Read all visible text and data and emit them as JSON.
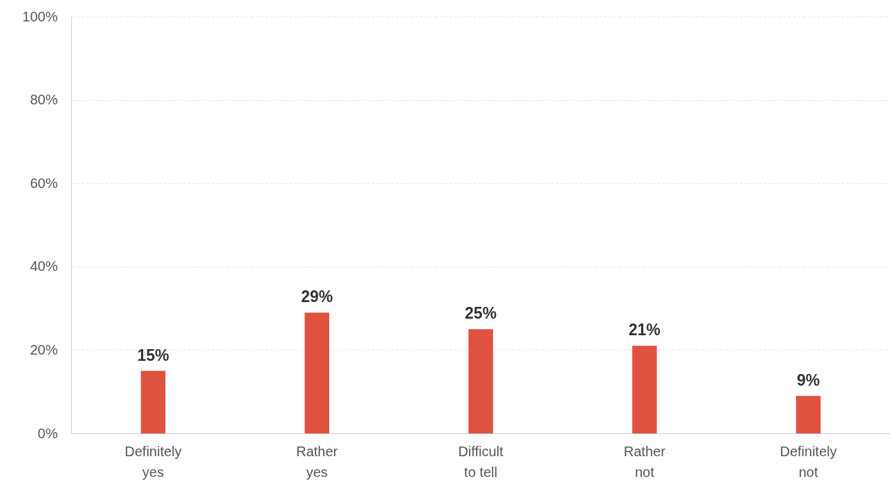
{
  "chart_data": {
    "type": "bar",
    "categories": [
      "Definitely yes",
      "Rather yes",
      "Difficult to tell",
      "Rather not",
      "Definitely not"
    ],
    "values": [
      15,
      29,
      25,
      21,
      9
    ],
    "value_labels": [
      "15%",
      "29%",
      "25%",
      "21%",
      "9%"
    ],
    "color": "#e05240",
    "ylim": [
      0,
      100
    ],
    "yticks": [
      {
        "value": 0,
        "label": "0%"
      },
      {
        "value": 20,
        "label": "20%"
      },
      {
        "value": 40,
        "label": "40%"
      },
      {
        "value": 60,
        "label": "60%"
      },
      {
        "value": 80,
        "label": "80%"
      },
      {
        "value": 100,
        "label": "100%"
      }
    ],
    "grid": "y"
  }
}
